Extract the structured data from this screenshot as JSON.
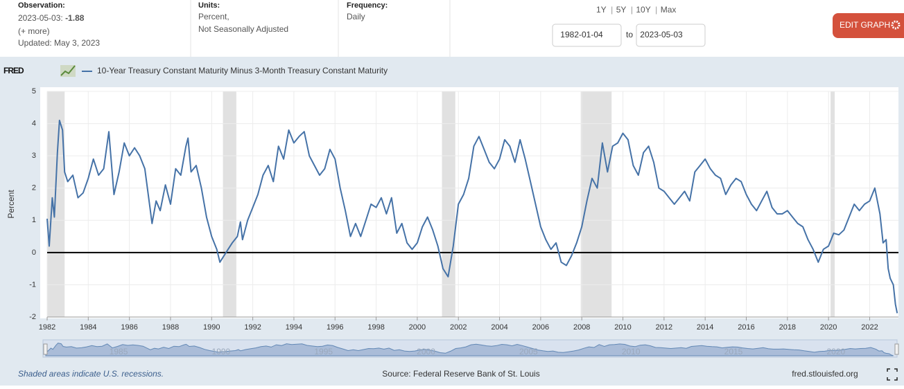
{
  "header": {
    "observation_label": "Observation:",
    "observation_date": "2023-05-03:",
    "observation_value": "-1.88",
    "more": "(+ more)",
    "updated": "Updated: May 3, 2023",
    "units_label": "Units:",
    "units_lines": [
      "Percent,",
      "Not Seasonally Adjusted"
    ],
    "frequency_label": "Frequency:",
    "frequency": "Daily",
    "range_options": [
      "1Y",
      "5Y",
      "10Y",
      "Max"
    ],
    "range_separator": "|",
    "start_date": "1982-01-04",
    "to": "to",
    "end_date": "2023-05-03",
    "edit_button": "EDIT GRAPH",
    "logo": "FRED"
  },
  "chart_data": {
    "type": "line",
    "ylabel": "Percent",
    "x": [
      1982.0,
      1982.1,
      1982.25,
      1982.35,
      1982.5,
      1982.6,
      1982.75,
      1982.85,
      1983.0,
      1983.25,
      1983.5,
      1983.75,
      1984.0,
      1984.25,
      1984.5,
      1984.75,
      1985.0,
      1985.25,
      1985.5,
      1985.75,
      1986.0,
      1986.25,
      1986.5,
      1986.75,
      1987.0,
      1987.1,
      1987.3,
      1987.5,
      1987.75,
      1988.0,
      1988.25,
      1988.5,
      1988.75,
      1988.85,
      1989.0,
      1989.25,
      1989.5,
      1989.75,
      1990.0,
      1990.25,
      1990.4,
      1990.6,
      1990.8,
      1991.0,
      1991.25,
      1991.4,
      1991.5,
      1991.75,
      1992.0,
      1992.25,
      1992.5,
      1992.75,
      1993.0,
      1993.25,
      1993.5,
      1993.75,
      1994.0,
      1994.25,
      1994.5,
      1994.75,
      1995.0,
      1995.25,
      1995.5,
      1995.75,
      1996.0,
      1996.25,
      1996.5,
      1996.75,
      1997.0,
      1997.25,
      1997.5,
      1997.75,
      1998.0,
      1998.25,
      1998.5,
      1998.75,
      1999.0,
      1999.25,
      1999.5,
      1999.75,
      2000.0,
      2000.25,
      2000.5,
      2000.75,
      2001.0,
      2001.25,
      2001.5,
      2001.75,
      2002.0,
      2002.25,
      2002.5,
      2002.75,
      2003.0,
      2003.25,
      2003.5,
      2003.75,
      2004.0,
      2004.25,
      2004.5,
      2004.75,
      2005.0,
      2005.25,
      2005.5,
      2005.75,
      2006.0,
      2006.25,
      2006.5,
      2006.75,
      2007.0,
      2007.25,
      2007.5,
      2007.75,
      2008.0,
      2008.25,
      2008.5,
      2008.75,
      2009.0,
      2009.25,
      2009.5,
      2009.75,
      2010.0,
      2010.25,
      2010.5,
      2010.75,
      2011.0,
      2011.25,
      2011.5,
      2011.75,
      2012.0,
      2012.25,
      2012.5,
      2012.75,
      2013.0,
      2013.25,
      2013.5,
      2013.75,
      2014.0,
      2014.25,
      2014.5,
      2014.75,
      2015.0,
      2015.25,
      2015.5,
      2015.75,
      2016.0,
      2016.25,
      2016.5,
      2016.75,
      2017.0,
      2017.25,
      2017.5,
      2017.75,
      2018.0,
      2018.25,
      2018.5,
      2018.75,
      2019.0,
      2019.25,
      2019.5,
      2019.75,
      2020.0,
      2020.25,
      2020.5,
      2020.75,
      2021.0,
      2021.25,
      2021.5,
      2021.75,
      2022.0,
      2022.25,
      2022.5,
      2022.65,
      2022.8,
      2022.9,
      2023.0,
      2023.15,
      2023.25,
      2023.34
    ],
    "series": [
      {
        "name": "10-Year Treasury Constant Maturity Minus 3-Month Treasury Constant Maturity",
        "color": "#4572a7",
        "values": [
          1.05,
          0.2,
          1.7,
          1.1,
          3.1,
          4.1,
          3.8,
          2.5,
          2.2,
          2.4,
          1.7,
          1.85,
          2.3,
          2.9,
          2.4,
          2.6,
          3.75,
          1.8,
          2.5,
          3.4,
          3.0,
          3.25,
          3.0,
          2.6,
          1.4,
          0.9,
          1.6,
          1.3,
          2.1,
          1.5,
          2.6,
          2.4,
          3.3,
          3.55,
          2.5,
          2.7,
          2.0,
          1.1,
          0.5,
          0.1,
          -0.3,
          -0.1,
          0.1,
          0.3,
          0.5,
          0.95,
          0.4,
          1.0,
          1.4,
          1.8,
          2.4,
          2.7,
          2.2,
          3.3,
          2.9,
          3.8,
          3.4,
          3.6,
          3.75,
          3.0,
          2.7,
          2.4,
          2.6,
          3.2,
          2.9,
          2.0,
          1.3,
          0.5,
          0.9,
          0.5,
          1.0,
          1.5,
          1.4,
          1.7,
          1.2,
          1.7,
          0.6,
          0.9,
          0.3,
          0.1,
          0.3,
          0.8,
          1.1,
          0.7,
          0.2,
          -0.5,
          -0.75,
          0.2,
          1.5,
          1.8,
          2.3,
          3.3,
          3.6,
          3.2,
          2.8,
          2.6,
          2.9,
          3.5,
          3.3,
          2.8,
          3.5,
          2.9,
          2.2,
          1.5,
          0.8,
          0.4,
          0.1,
          0.3,
          -0.3,
          -0.4,
          -0.1,
          0.3,
          0.8,
          1.6,
          2.3,
          2.0,
          3.4,
          2.5,
          3.3,
          3.4,
          3.7,
          3.5,
          2.7,
          2.4,
          3.1,
          3.3,
          2.8,
          2.0,
          1.9,
          1.7,
          1.5,
          1.7,
          1.9,
          1.6,
          2.5,
          2.7,
          2.9,
          2.6,
          2.4,
          2.3,
          1.8,
          2.1,
          2.3,
          2.2,
          1.8,
          1.5,
          1.3,
          1.6,
          1.9,
          1.4,
          1.2,
          1.2,
          1.3,
          1.1,
          0.9,
          0.8,
          0.4,
          0.1,
          -0.3,
          0.1,
          0.2,
          0.6,
          0.55,
          0.7,
          1.1,
          1.5,
          1.3,
          1.5,
          1.6,
          2.0,
          1.2,
          0.3,
          0.4,
          -0.5,
          -0.8,
          -1.0,
          -1.6,
          -1.88
        ]
      }
    ],
    "recessions": [
      [
        1982.0,
        1982.85
      ],
      [
        1990.55,
        1991.2
      ],
      [
        2001.2,
        2001.85
      ],
      [
        2007.95,
        2009.45
      ],
      [
        2020.1,
        2020.3
      ]
    ],
    "xlim": [
      1982.0,
      2023.4
    ],
    "ylim": [
      -2,
      5
    ],
    "xticks": [
      1982,
      1984,
      1986,
      1988,
      1990,
      1992,
      1994,
      1996,
      1998,
      2000,
      2002,
      2004,
      2006,
      2008,
      2010,
      2012,
      2014,
      2016,
      2018,
      2020,
      2022
    ],
    "yticks": [
      -2,
      -1,
      0,
      1,
      2,
      3,
      4,
      5
    ],
    "grid": true,
    "zero_line": true,
    "navigator_labels": [
      1985,
      1990,
      1995,
      2000,
      2005,
      2010,
      2015,
      2020
    ],
    "recession_note": "Shaded areas indicate U.S. recessions.",
    "source": "Source: Federal Reserve Bank of St. Louis",
    "site": "fred.stlouisfed.org"
  }
}
